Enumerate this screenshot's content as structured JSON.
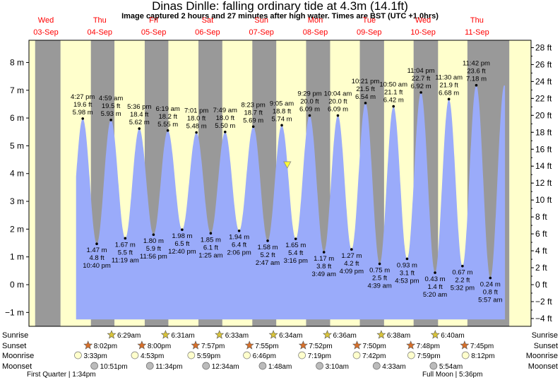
{
  "title": "Dinas Dinlle: falling  ordinary tide at 4.3m (14.1ft)",
  "subtitle": "Image captured 2 hours and 27 minutes after high water. Times are BST (UTC +1.0hrs)",
  "chart_data": {
    "type": "area",
    "x_unit": "days from Wed 03-Sep 00:00 (BST)",
    "days": [
      {
        "dow": "Wed",
        "date": "03-Sep"
      },
      {
        "dow": "Thu",
        "date": "04-Sep"
      },
      {
        "dow": "Fri",
        "date": "05-Sep"
      },
      {
        "dow": "Sat",
        "date": "06-Sep"
      },
      {
        "dow": "Sun",
        "date": "07-Sep"
      },
      {
        "dow": "Mon",
        "date": "08-Sep"
      },
      {
        "dow": "Tue",
        "date": "09-Sep"
      },
      {
        "dow": "Wed",
        "date": "10-Sep"
      },
      {
        "dow": "Thu",
        "date": "11-Sep"
      }
    ],
    "y_left": {
      "unit": "m",
      "ylim": [
        -1.5,
        8.8
      ],
      "ticks": [
        -1,
        0,
        1,
        2,
        3,
        4,
        5,
        6,
        7,
        8
      ],
      "labels": [
        "−1 m",
        "0 m",
        "1 m",
        "2 m",
        "3 m",
        "4 m",
        "5 m",
        "6 m",
        "7 m",
        "8 m"
      ]
    },
    "y_right": {
      "unit": "ft",
      "ticks": [
        -4,
        -2,
        0,
        2,
        4,
        6,
        8,
        10,
        12,
        14,
        16,
        18,
        20,
        22,
        24,
        26,
        28
      ],
      "labels": [
        "−4 ft",
        "−2 ft",
        "0 ft",
        "2 ft",
        "4 ft",
        "6 ft",
        "8 ft",
        "10 ft",
        "12 ft",
        "14 ft",
        "16 ft",
        "18 ft",
        "20 ft",
        "22 ft",
        "24 ft",
        "26 ft",
        "28 ft"
      ]
    },
    "tides": [
      {
        "type": "high",
        "day": 0.684,
        "m": 5.98,
        "m_label": "5.98 m",
        "ft_label": "19.6 ft",
        "time": "4:27 pm"
      },
      {
        "type": "low",
        "day": 0.944,
        "m": 1.47,
        "m_label": "1.47 m",
        "ft_label": "4.8 ft",
        "time": "10:40 pm"
      },
      {
        "type": "high",
        "day": 1.207,
        "m": 5.93,
        "m_label": "5.93 m",
        "ft_label": "19.5 ft",
        "time": "4:59 am"
      },
      {
        "type": "low",
        "day": 1.472,
        "m": 1.67,
        "m_label": "1.67 m",
        "ft_label": "5.5 ft",
        "time": "11:19 am"
      },
      {
        "type": "high",
        "day": 1.733,
        "m": 5.62,
        "m_label": "5.62 m",
        "ft_label": "18.4 ft",
        "time": "5:36 pm"
      },
      {
        "type": "low",
        "day": 1.997,
        "m": 1.8,
        "m_label": "1.80 m",
        "ft_label": "5.9 ft",
        "time": "11:56 pm"
      },
      {
        "type": "high",
        "day": 2.263,
        "m": 5.55,
        "m_label": "5.55 m",
        "ft_label": "18.2 ft",
        "time": "6:19 am"
      },
      {
        "type": "low",
        "day": 2.528,
        "m": 1.98,
        "m_label": "1.98 m",
        "ft_label": "6.5 ft",
        "time": "12:40 pm"
      },
      {
        "type": "high",
        "day": 2.793,
        "m": 5.48,
        "m_label": "5.48 m",
        "ft_label": "18.0 ft",
        "time": "7:01 pm"
      },
      {
        "type": "low",
        "day": 3.059,
        "m": 1.85,
        "m_label": "1.85 m",
        "ft_label": "6.1 ft",
        "time": "1:25 am"
      },
      {
        "type": "high",
        "day": 3.326,
        "m": 5.5,
        "m_label": "5.50 m",
        "ft_label": "18.0 ft",
        "time": "7:49 am"
      },
      {
        "type": "low",
        "day": 3.586,
        "m": 1.94,
        "m_label": "1.94 m",
        "ft_label": "6.4 ft",
        "time": "2:06 pm"
      },
      {
        "type": "high",
        "day": 3.849,
        "m": 5.69,
        "m_label": "5.69 m",
        "ft_label": "18.7 ft",
        "time": "8:23 pm"
      },
      {
        "type": "low",
        "day": 4.116,
        "m": 1.58,
        "m_label": "1.58 m",
        "ft_label": "5.2 ft",
        "time": "2:47 am"
      },
      {
        "type": "high",
        "day": 4.378,
        "m": 5.74,
        "m_label": "5.74 m",
        "ft_label": "18.8 ft",
        "time": "9:05 am"
      },
      {
        "type": "low",
        "day": 4.636,
        "m": 1.65,
        "m_label": "1.65 m",
        "ft_label": "5.4 ft",
        "time": "3:16 pm"
      },
      {
        "type": "high",
        "day": 4.895,
        "m": 6.09,
        "m_label": "6.09 m",
        "ft_label": "20.0 ft",
        "time": "9:29 pm"
      },
      {
        "type": "low",
        "day": 5.16,
        "m": 1.17,
        "m_label": "1.17 m",
        "ft_label": "3.8 ft",
        "time": "3:49 am"
      },
      {
        "type": "high",
        "day": 5.419,
        "m": 6.09,
        "m_label": "6.09 m",
        "ft_label": "20.0 ft",
        "time": "10:04 am"
      },
      {
        "type": "low",
        "day": 5.673,
        "m": 1.27,
        "m_label": "1.27 m",
        "ft_label": "4.2 ft",
        "time": "4:09 pm"
      },
      {
        "type": "high",
        "day": 5.931,
        "m": 6.54,
        "m_label": "6.54 m",
        "ft_label": "21.5 ft",
        "time": "10:21 pm"
      },
      {
        "type": "low",
        "day": 6.194,
        "m": 0.75,
        "m_label": "0.75 m",
        "ft_label": "2.5 ft",
        "time": "4:39 am"
      },
      {
        "type": "high",
        "day": 6.451,
        "m": 6.42,
        "m_label": "6.42 m",
        "ft_label": "21.1 ft",
        "time": "10:50 am"
      },
      {
        "type": "low",
        "day": 6.703,
        "m": 0.93,
        "m_label": "0.93 m",
        "ft_label": "3.1 ft",
        "time": "4:53 pm"
      },
      {
        "type": "high",
        "day": 6.961,
        "m": 6.92,
        "m_label": "6.92 m",
        "ft_label": "22.7 ft",
        "time": "11:04 pm"
      },
      {
        "type": "low",
        "day": 7.222,
        "m": 0.43,
        "m_label": "0.43 m",
        "ft_label": "1.4 ft",
        "time": "5:20 am"
      },
      {
        "type": "high",
        "day": 7.479,
        "m": 6.68,
        "m_label": "6.68 m",
        "ft_label": "21.9 ft",
        "time": "11:30 am"
      },
      {
        "type": "low",
        "day": 7.731,
        "m": 0.67,
        "m_label": "0.67 m",
        "ft_label": "2.2 ft",
        "time": "5:32 pm"
      },
      {
        "type": "high",
        "day": 7.988,
        "m": 7.18,
        "m_label": "7.18 m",
        "ft_label": "23.6 ft",
        "time": "11:42 pm"
      },
      {
        "type": "low",
        "day": 8.248,
        "m": 0.24,
        "m_label": "0.24 m",
        "ft_label": "0.8 ft",
        "time": "5:57 am"
      }
    ],
    "current": {
      "day": 4.48,
      "m": 4.3
    },
    "night_bands": [
      [
        -0.2,
        0.271
      ],
      [
        0.835,
        1.272
      ],
      [
        1.834,
        2.273
      ],
      [
        2.831,
        3.274
      ],
      [
        3.831,
        4.275
      ],
      [
        4.829,
        5.275
      ],
      [
        5.826,
        6.276
      ],
      [
        6.824,
        7.278
      ],
      [
        7.823,
        8.6
      ]
    ],
    "astro": {
      "sunrise": [
        {
          "day": 1.271,
          "time": "6:29am"
        },
        {
          "day": 2.272,
          "time": "6:31am"
        },
        {
          "day": 3.273,
          "time": "6:33am"
        },
        {
          "day": 4.274,
          "time": "6:34am"
        },
        {
          "day": 5.275,
          "time": "6:36am"
        },
        {
          "day": 6.276,
          "time": "6:38am"
        },
        {
          "day": 7.278,
          "time": "6:40am"
        }
      ],
      "sunset": [
        {
          "day": 0.835,
          "time": "8:02pm"
        },
        {
          "day": 1.833,
          "time": "8:00pm"
        },
        {
          "day": 2.831,
          "time": "7:57pm"
        },
        {
          "day": 3.83,
          "time": "7:55pm"
        },
        {
          "day": 4.828,
          "time": "7:52pm"
        },
        {
          "day": 5.826,
          "time": "7:50pm"
        },
        {
          "day": 6.824,
          "time": "7:48pm"
        },
        {
          "day": 7.823,
          "time": "7:45pm"
        }
      ],
      "moonrise": [
        {
          "day": 0.648,
          "time": "3:33pm"
        },
        {
          "day": 1.703,
          "time": "4:53pm"
        },
        {
          "day": 2.75,
          "time": "5:59pm"
        },
        {
          "day": 3.782,
          "time": "6:46pm"
        },
        {
          "day": 4.805,
          "time": "7:19pm"
        },
        {
          "day": 5.82,
          "time": "7:42pm"
        },
        {
          "day": 6.833,
          "time": "7:59pm"
        },
        {
          "day": 7.84,
          "time": "8:12pm"
        }
      ],
      "moonset": [
        {
          "day": 0.952,
          "time": "10:51pm"
        },
        {
          "day": 1.982,
          "time": "11:34pm"
        },
        {
          "day": 3.024,
          "time": "12:34am"
        },
        {
          "day": 4.075,
          "time": "1:48am"
        },
        {
          "day": 5.132,
          "time": "3:10am"
        },
        {
          "day": 6.19,
          "time": "4:33am"
        },
        {
          "day": 7.246,
          "time": "5:54am"
        }
      ],
      "row_labels": [
        "Sunrise",
        "Sunset",
        "Moonrise",
        "Moonset"
      ],
      "moon_phases": [
        {
          "label": "First Quarter | 1:34pm"
        },
        {
          "label": "Full Moon | 5:36pm"
        }
      ]
    },
    "colors": {
      "water": "#9aabfa",
      "day": "#ffffcc",
      "night": "#999999",
      "day_label": "#ff0000",
      "current_marker": "#ffff33"
    }
  }
}
